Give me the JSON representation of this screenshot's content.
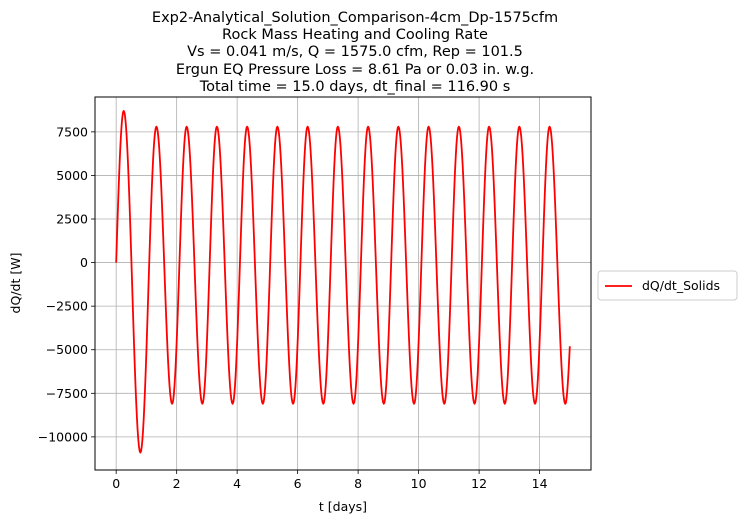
{
  "chart_data": {
    "type": "line",
    "title_lines": [
      "Exp2-Analytical_Solution_Comparison-4cm_Dp-1575cfm",
      "Rock Mass Heating and Cooling Rate",
      "Vs = 0.041 m/s, Q = 1575.0 cfm, Rep = 101.5",
      "Ergun EQ Pressure Loss = 8.61 Pa or 0.03 in. w.g.",
      "Total time = 15.0 days, dt_final = 116.90 s"
    ],
    "xlabel": "t [days]",
    "ylabel": "dQ/dt [W]",
    "xlim": [
      -0.7,
      15.7
    ],
    "ylim": [
      -11900,
      9500
    ],
    "xticks": [
      0,
      2,
      4,
      6,
      8,
      10,
      12,
      14
    ],
    "xtick_labels": [
      "0",
      "2",
      "4",
      "6",
      "8",
      "10",
      "12",
      "14"
    ],
    "yticks": [
      -10000,
      -7500,
      -5000,
      -2500,
      0,
      2500,
      5000,
      7500
    ],
    "ytick_labels": [
      "−10000",
      "−7500",
      "−5000",
      "−2500",
      "0",
      "2500",
      "5000",
      "7500"
    ],
    "grid": true,
    "legend_position": "outside-right",
    "series": [
      {
        "name": "dQ/dt_Solids",
        "color": "#ff0000",
        "period_days": 1.0,
        "x_start": 0,
        "x_end": 15.0,
        "y_start": 0,
        "y_end": -4800,
        "extrema": [
          {
            "x": 0.25,
            "y": 8700
          },
          {
            "x": 0.8,
            "y": -10900
          },
          {
            "x": 1.33,
            "y": 7800
          },
          {
            "x": 1.85,
            "y": -8100
          },
          {
            "x": 2.33,
            "y": 7800
          },
          {
            "x": 2.85,
            "y": -8100
          },
          {
            "x": 3.33,
            "y": 7800
          },
          {
            "x": 3.85,
            "y": -8100
          },
          {
            "x": 4.33,
            "y": 7800
          },
          {
            "x": 4.85,
            "y": -8100
          },
          {
            "x": 5.33,
            "y": 7800
          },
          {
            "x": 5.85,
            "y": -8100
          },
          {
            "x": 6.33,
            "y": 7800
          },
          {
            "x": 6.85,
            "y": -8100
          },
          {
            "x": 7.33,
            "y": 7800
          },
          {
            "x": 7.85,
            "y": -8100
          },
          {
            "x": 8.33,
            "y": 7800
          },
          {
            "x": 8.85,
            "y": -8100
          },
          {
            "x": 9.33,
            "y": 7800
          },
          {
            "x": 9.85,
            "y": -8100
          },
          {
            "x": 10.33,
            "y": 7800
          },
          {
            "x": 10.85,
            "y": -8100
          },
          {
            "x": 11.33,
            "y": 7800
          },
          {
            "x": 11.85,
            "y": -8100
          },
          {
            "x": 12.33,
            "y": 7800
          },
          {
            "x": 12.85,
            "y": -8100
          },
          {
            "x": 13.33,
            "y": 7800
          },
          {
            "x": 13.85,
            "y": -8100
          },
          {
            "x": 14.33,
            "y": 7800
          },
          {
            "x": 14.85,
            "y": -8100
          }
        ]
      }
    ]
  }
}
